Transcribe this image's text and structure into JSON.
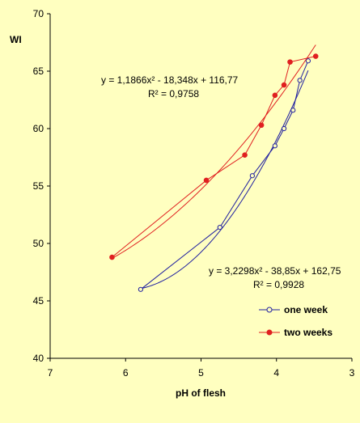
{
  "chart_data": {
    "type": "scatter",
    "xlabel": "pH of flesh",
    "ylabel": "WI",
    "xlim": [
      7,
      3
    ],
    "ylim": [
      40,
      70
    ],
    "x_reversed": true,
    "x_ticks": [
      "7",
      "6",
      "5",
      "4",
      "3"
    ],
    "y_ticks": [
      "40",
      "45",
      "50",
      "55",
      "60",
      "65",
      "70"
    ],
    "grid": false,
    "legend_position": "bottom-right",
    "series": [
      {
        "name": "one week",
        "color": "#2020A0",
        "marker": "open-circle",
        "x": [
          5.8,
          4.75,
          4.32,
          4.02,
          3.9,
          3.78,
          3.69,
          3.58
        ],
        "y": [
          46.0,
          51.4,
          55.9,
          58.5,
          60.0,
          61.6,
          64.2,
          65.9
        ],
        "trend": {
          "a": 3.2298,
          "b": -38.85,
          "c": 162.75,
          "x_range": [
            5.8,
            3.58
          ]
        },
        "equation": "y = 3,2298x² - 38,85x + 162,75",
        "r2": "R² = 0,9928"
      },
      {
        "name": "two weeks",
        "color": "#E02020",
        "marker": "filled-circle",
        "x": [
          6.18,
          4.93,
          4.42,
          4.2,
          4.02,
          3.9,
          3.82,
          3.48
        ],
        "y": [
          48.8,
          55.5,
          57.7,
          60.3,
          62.9,
          63.8,
          65.8,
          66.3
        ],
        "trend": {
          "a": 1.1866,
          "b": -18.348,
          "c": 116.77,
          "x_range": [
            6.18,
            3.48
          ]
        },
        "equation": "y = 1,1866x² - 18,348x + 116,77",
        "r2": "R² = 0,9758"
      }
    ]
  }
}
